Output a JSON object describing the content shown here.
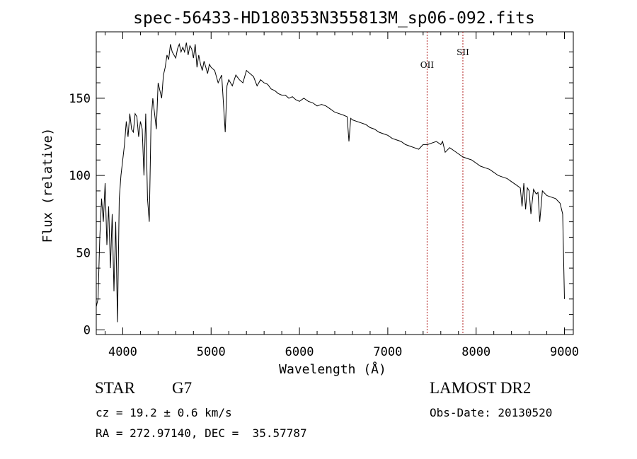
{
  "chart_data": {
    "type": "line",
    "title": "spec-56433-HD180353N355813M_sp06-092.fits",
    "xlabel": "Wavelength (Å)",
    "ylabel": "Flux (relative)",
    "xlim": [
      3700,
      9100
    ],
    "ylim": [
      -3,
      193
    ],
    "x_ticks": [
      4000,
      5000,
      6000,
      7000,
      8000,
      9000
    ],
    "y_ticks": [
      0,
      50,
      100,
      150
    ],
    "line_color": "#000000",
    "series": [
      {
        "x": [
          3700,
          3720,
          3740,
          3760,
          3780,
          3800,
          3820,
          3840,
          3860,
          3880,
          3900,
          3920,
          3940,
          3960,
          3980,
          4000,
          4020,
          4040,
          4060,
          4080,
          4100,
          4120,
          4140,
          4160,
          4180,
          4200,
          4220,
          4240,
          4260,
          4280,
          4300,
          4320,
          4340,
          4360,
          4380,
          4400,
          4420,
          4440,
          4460,
          4480,
          4500,
          4520,
          4540,
          4560,
          4580,
          4600,
          4620,
          4640,
          4660,
          4680,
          4700,
          4720,
          4740,
          4760,
          4780,
          4800,
          4820,
          4840,
          4860,
          4880,
          4900,
          4920,
          4940,
          4960,
          4980,
          5000,
          5040,
          5080,
          5120,
          5160,
          5180,
          5200,
          5240,
          5280,
          5320,
          5360,
          5400,
          5440,
          5480,
          5520,
          5560,
          5600,
          5640,
          5680,
          5720,
          5760,
          5800,
          5840,
          5880,
          5920,
          5960,
          6000,
          6050,
          6100,
          6150,
          6200,
          6250,
          6300,
          6350,
          6400,
          6450,
          6500,
          6540,
          6560,
          6580,
          6600,
          6650,
          6700,
          6750,
          6800,
          6850,
          6900,
          6950,
          7000,
          7050,
          7100,
          7150,
          7200,
          7250,
          7300,
          7350,
          7400,
          7450,
          7500,
          7550,
          7600,
          7620,
          7650,
          7700,
          7750,
          7800,
          7850,
          7900,
          7950,
          8000,
          8050,
          8100,
          8150,
          8200,
          8250,
          8300,
          8350,
          8400,
          8450,
          8500,
          8520,
          8540,
          8560,
          8580,
          8600,
          8620,
          8650,
          8680,
          8700,
          8720,
          8750,
          8800,
          8850,
          8900,
          8950,
          8980,
          9000
        ],
        "y": [
          15,
          20,
          60,
          85,
          70,
          95,
          55,
          80,
          40,
          75,
          25,
          70,
          5,
          85,
          100,
          110,
          120,
          135,
          125,
          140,
          130,
          128,
          140,
          138,
          125,
          135,
          130,
          100,
          140,
          85,
          70,
          135,
          150,
          140,
          130,
          160,
          155,
          150,
          165,
          170,
          178,
          175,
          185,
          180,
          178,
          176,
          182,
          185,
          180,
          183,
          180,
          186,
          178,
          184,
          182,
          176,
          185,
          170,
          178,
          172,
          168,
          174,
          170,
          166,
          172,
          170,
          168,
          160,
          165,
          128,
          158,
          162,
          158,
          165,
          162,
          160,
          168,
          166,
          164,
          158,
          162,
          160,
          159,
          156,
          155,
          153,
          152,
          152,
          150,
          151,
          149,
          148,
          150,
          148,
          147,
          145,
          146,
          145,
          143,
          141,
          140,
          139,
          138,
          122,
          137,
          136,
          135,
          134,
          133,
          131,
          130,
          128,
          127,
          126,
          124,
          123,
          122,
          120,
          119,
          118,
          117,
          120,
          120,
          121,
          122,
          120,
          122,
          115,
          118,
          116,
          114,
          112,
          111,
          110,
          108,
          106,
          105,
          104,
          102,
          100,
          99,
          98,
          96,
          94,
          92,
          80,
          95,
          78,
          92,
          90,
          75,
          91,
          88,
          89,
          70,
          90,
          87,
          86,
          85,
          82,
          75,
          20
        ]
      }
    ],
    "annotations": [
      {
        "text": "OII",
        "x": 7445
      },
      {
        "text": "SII",
        "x": 7850
      }
    ],
    "annotation_line_color": "#b22222"
  },
  "info": {
    "object_class": "STAR",
    "subclass": "G7",
    "cz": "cz = 19.2 ± 0.6 km/s",
    "coords": "RA = 272.97140, DEC =  35.57787",
    "survey": "LAMOST DR2",
    "obs_date": "Obs-Date: 20130520"
  }
}
